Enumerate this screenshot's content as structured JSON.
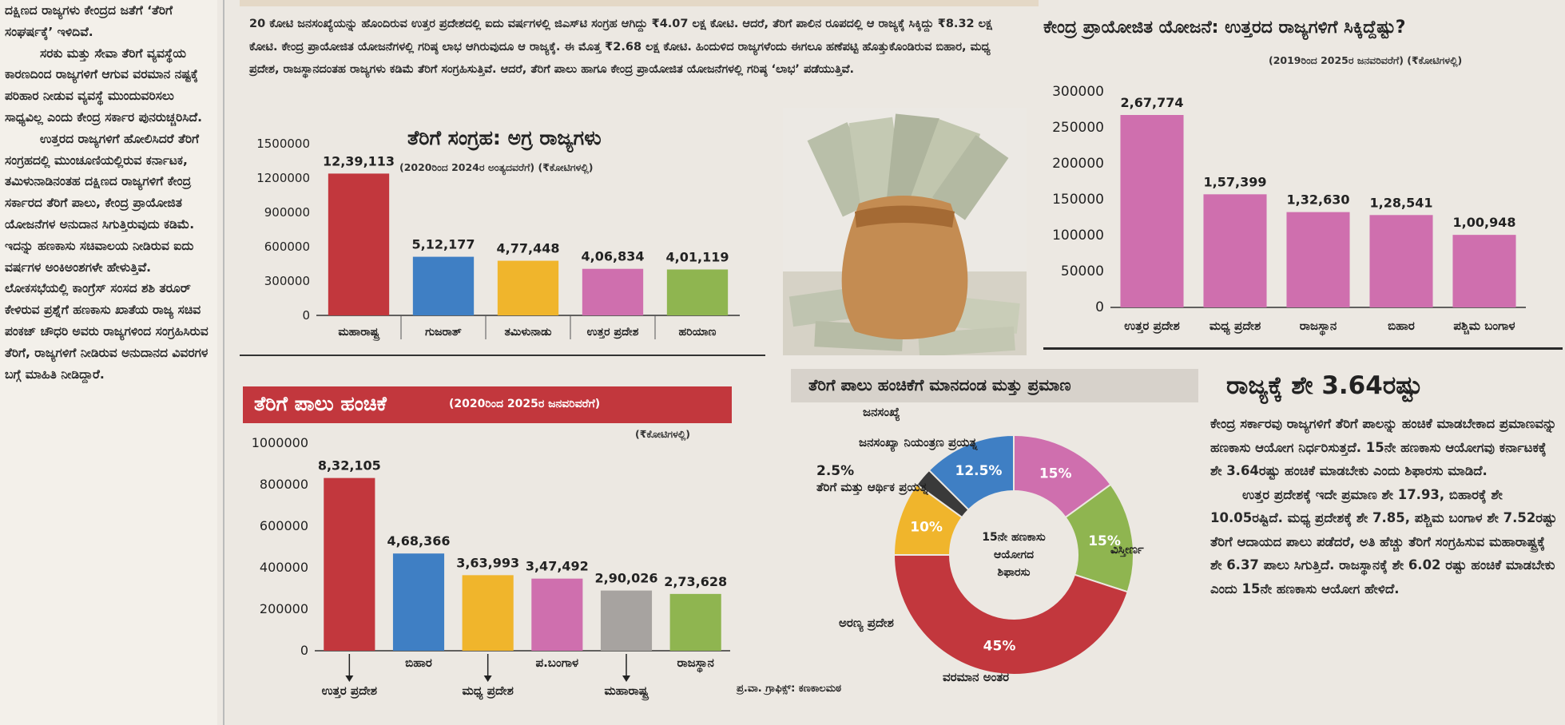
{
  "left_column": {
    "paragraphs": [
      "ದಕ್ಷಿಣದ ರಾಜ್ಯಗಳು ಕೇಂದ್ರದ ಜತೆಗೆ ‘ತೆರಿಗೆ ಸಂಘರ್ಷಕ್ಕೆ’ ಇಳಿದಿವೆ.",
      "ಸರಕು ಮತ್ತು ಸೇವಾ ತೆರಿಗೆ ವ್ಯವಸ್ಥೆಯ ಕಾರಣದಿಂದ ರಾಜ್ಯಗಳಿಗೆ ಆಗುವ ವರಮಾನ ನಷ್ಟಕ್ಕೆ ಪರಿಹಾರ ನೀಡುವ ವ್ಯವಸ್ಥೆ ಮುಂದುವರಿಸಲು ಸಾಧ್ಯವಿಲ್ಲ ಎಂದು ಕೇಂದ್ರ ಸರ್ಕಾರ ಪುನರುಚ್ಚರಿಸಿದೆ.",
      "ಉತ್ತರದ ರಾಜ್ಯಗಳಿಗೆ ಹೋಲಿಸಿದರೆ ತೆರಿಗೆ ಸಂಗ್ರಹದಲ್ಲಿ ಮುಂಚೂಣಿಯಲ್ಲಿರುವ ಕರ್ನಾಟಕ, ತಮಿಳುನಾಡಿನಂತಹ ದಕ್ಷಿಣದ ರಾಜ್ಯಗಳಿಗೆ ಕೇಂದ್ರ ಸರ್ಕಾರದ ತೆರಿಗೆ ಪಾಲು, ಕೇಂದ್ರ ಪ್ರಾಯೋಜಿತ ಯೋಜನೆಗಳ ಅನುದಾನ ಸಿಗುತ್ತಿರುವುದು ಕಡಿಮೆ. ಇದನ್ನು ಹಣಕಾಸು ಸಚಿವಾಲಯ ನೀಡಿರುವ ಐದು ವರ್ಷಗಳ ಅಂಕಿಅಂಶಗಳೇ ಹೇಳುತ್ತಿವೆ. ಲೋಕಸಭೆಯಲ್ಲಿ ಕಾಂಗ್ರೆಸ್ ಸಂಸದ ಶಶಿ ತರೂರ್ ಕೇಳಿರುವ ಪ್ರಶ್ನೆಗೆ ಹಣಕಾಸು ಖಾತೆಯ ರಾಜ್ಯ ಸಚಿವ ಪಂಕಜ್ ಚೌಧರಿ ಅವರು ರಾಜ್ಯಗಳಿಂದ ಸಂಗ್ರಹಿಸಿರುವ ತೆರಿಗೆ, ರಾಜ್ಯಗಳಿಗೆ ನೀಡಿರುವ ಅನುದಾನದ ವಿವರಗಳ ಬಗ್ಗೆ ಮಾಹಿತಿ ನೀಡಿದ್ದಾರೆ."
    ]
  },
  "intro": "20 ಕೋಟಿ ಜನಸಂಖ್ಯೆಯನ್ನು ಹೊಂದಿರುವ ಉತ್ತರ ಪ್ರದೇಶದಲ್ಲಿ ಐದು ವರ್ಷಗಳಲ್ಲಿ ಜಿಎಸ್‌ಟಿ ಸಂಗ್ರಹ ಆಗಿದ್ದು ₹4.07 ಲಕ್ಷ ಕೋಟಿ. ಆದರೆ, ತೆರಿಗೆ ಪಾಲಿನ ರೂಪದಲ್ಲಿ ಆ ರಾಜ್ಯಕ್ಕೆ ಸಿಕ್ಕಿದ್ದು ₹8.32 ಲಕ್ಷ ಕೋಟಿ. ಕೇಂದ್ರ ಪ್ರಾಯೋಜಿತ ಯೋಜನೆಗಳಲ್ಲಿ ಗರಿಷ್ಠ ಲಾಭ ಆಗಿರುವುದೂ ಆ ರಾಜ್ಯಕ್ಕೆ. ಈ ಮೊತ್ತ ₹2.68 ಲಕ್ಷ ಕೋಟಿ. ಹಿಂದುಳಿದ ರಾಜ್ಯಗಳೆಂದು ಈಗಲೂ ಹಣೆಪಟ್ಟಿ ಹೊತ್ತುಕೊಂಡಿರುವ ಬಿಹಾರ, ಮಧ್ಯ ಪ್ರದೇಶ, ರಾಜಸ್ಥಾನದಂತಹ ರಾಜ್ಯಗಳು ಕಡಿಮೆ ತೆರಿಗೆ ಸಂಗ್ರಹಿಸುತ್ತಿವೆ. ಆದರೆ, ತೆರಿಗೆ ಪಾಲು ಹಾಗೂ ಕೇಂದ್ರ ಪ್ರಾಯೋಜಿತ ಯೋಜನೆಗಳಲ್ಲಿ ಗರಿಷ್ಠ ‘ಲಾಭ’ ಪಡೆಯುತ್ತಿವೆ.",
  "chart_data": [
    {
      "id": "tax_collection",
      "type": "bar",
      "title": "ತೆರಿಗೆ ಸಂಗ್ರಹ: ಅಗ್ರ ರಾಜ್ಯಗಳು",
      "subtitle": "(2020ರಿಂದ 2024ರ ಅಂತ್ಯದವರೆಗೆ) (₹ಕೋಟಿಗಳಲ್ಲಿ)",
      "categories": [
        "ಮಹಾರಾಷ್ಟ್ರ",
        "ಗುಜರಾತ್",
        "ತಮಿಳುನಾಡು",
        "ಉತ್ತರ ಪ್ರದೇಶ",
        "ಹರಿಯಾಣ"
      ],
      "values": [
        1239113,
        512177,
        477448,
        406834,
        401119
      ],
      "value_labels": [
        "12,39,113",
        "5,12,177",
        "4,77,448",
        "4,06,834",
        "4,01,119"
      ],
      "colors": [
        "#c2373d",
        "#3f7fc4",
        "#f0b52c",
        "#cf6fae",
        "#8fb550"
      ],
      "yticks": [
        0,
        300000,
        600000,
        900000,
        1200000,
        1500000
      ],
      "ylim": [
        0,
        1500000
      ]
    },
    {
      "id": "tax_share",
      "type": "bar",
      "title": "ತೆರಿಗೆ ಪಾಲು ಹಂಚಿಕೆ",
      "subtitle": "(2020ರಿಂದ 2025ರ ಜನವರಿವರೆಗೆ)",
      "unit": "(₹ಕೋಟಿಗಳಲ್ಲಿ)",
      "categories": [
        "ಉತ್ತರ ಪ್ರದೇಶ",
        "ಬಿಹಾರ",
        "ಮಧ್ಯ ಪ್ರದೇಶ",
        "ಪ.ಬಂಗಾಳ",
        "ಮಹಾರಾಷ್ಟ್ರ",
        "ರಾಜಸ್ಥಾನ"
      ],
      "values": [
        832105,
        468366,
        363993,
        347492,
        290026,
        273628
      ],
      "value_labels": [
        "8,32,105",
        "4,68,366",
        "3,63,993",
        "3,47,492",
        "2,90,026",
        "2,73,628"
      ],
      "colors": [
        "#c2373d",
        "#3f7fc4",
        "#f0b52c",
        "#cf6fae",
        "#a7a3a0",
        "#8fb550"
      ],
      "yticks": [
        0,
        200000,
        400000,
        600000,
        800000,
        1000000
      ],
      "ylim": [
        0,
        1000000
      ]
    },
    {
      "id": "central_schemes",
      "type": "bar",
      "title": "ಕೇಂದ್ರ ಪ್ರಾಯೋಜಿತ ಯೋಜನೆ: ಉತ್ತರದ ರಾಜ್ಯಗಳಿಗೆ ಸಿಕ್ಕಿದ್ದೆಷ್ಟು?",
      "subtitle": "(2019ರಿಂದ 2025ರ ಜನವರಿವರೆಗೆ) (₹ಕೋಟಿಗಳಲ್ಲಿ)",
      "categories": [
        "ಉತ್ತರ ಪ್ರದೇಶ",
        "ಮಧ್ಯ ಪ್ರದೇಶ",
        "ರಾಜಸ್ಥಾನ",
        "ಬಿಹಾರ",
        "ಪಶ್ಚಿಮ ಬಂಗಾಳ"
      ],
      "values": [
        267774,
        157399,
        132630,
        128541,
        100948
      ],
      "value_labels": [
        "2,67,774",
        "1,57,399",
        "1,32,630",
        "1,28,541",
        "1,00,948"
      ],
      "colors": [
        "#cf6fae",
        "#cf6fae",
        "#cf6fae",
        "#cf6fae",
        "#cf6fae"
      ],
      "yticks": [
        0,
        50000,
        100000,
        150000,
        200000,
        250000,
        300000
      ],
      "ylim": [
        0,
        300000
      ]
    },
    {
      "id": "devolution_criteria",
      "type": "pie",
      "title": "ತೆರಿಗೆ ಪಾಲು ಹಂಚಿಕೆಗೆ ಮಾನದಂಡ ಮತ್ತು ಪ್ರಮಾಣ",
      "center_label": [
        "15ನೇ ಹಣಕಾಸು",
        "ಆಯೋಗದ",
        "ಶಿಫಾರಸು"
      ],
      "slices": [
        {
          "label": "ಜನಸಂಖ್ಯೆ",
          "value": 15,
          "pct": "15%",
          "color": "#cf6fae"
        },
        {
          "label": "ವಿಸ್ತೀರ್ಣ",
          "value": 15,
          "pct": "15%",
          "color": "#8fb550"
        },
        {
          "label": "ವರಮಾನ ಅಂತರ",
          "value": 45,
          "pct": "45%",
          "color": "#c2373d"
        },
        {
          "label": "ಅರಣ್ಯ ಪ್ರದೇಶ",
          "value": 10,
          "pct": "10%",
          "color": "#f0b52c"
        },
        {
          "label": "ತೆರಿಗೆ ಮತ್ತು ಆರ್ಥಿಕ ಪ್ರಯತ್ನ",
          "value": 2.5,
          "pct": "2.5%",
          "color": "#3a3a3a"
        },
        {
          "label": "ಜನಸಂಖ್ಯಾ ನಿಯಂತ್ರಣ ಪ್ರಯತ್ನ",
          "value": 12.5,
          "pct": "12.5%",
          "color": "#3f7fc4"
        }
      ]
    }
  ],
  "credit": "ಪ್ರ.ವಾ. ಗ್ರಾಫಿಕ್ಸ್: ಕಣಕಾಲಮಠ",
  "right_story": {
    "title": "ರಾಜ್ಯಕ್ಕೆ ಶೇ 3.64ರಷ್ಟು",
    "p1": "ಕೇಂದ್ರ ಸರ್ಕಾರವು ರಾಜ್ಯಗಳಿಗೆ ತೆರಿಗೆ ಪಾಲನ್ನು ಹಂಚಿಕೆ ಮಾಡಬೇಕಾದ ಪ್ರಮಾಣವನ್ನು ಹಣಕಾಸು ಆಯೋಗ ನಿರ್ಧರಿಸುತ್ತದೆ. 15ನೇ ಹಣಕಾಸು ಆಯೋಗವು ಕರ್ನಾಟಕಕ್ಕೆ ಶೇ 3.64ರಷ್ಟು ಹಂಚಿಕೆ ಮಾಡಬೇಕು ಎಂದು ಶಿಫಾರಸು ಮಾಡಿದೆ.",
    "p2": "ಉತ್ತರ ಪ್ರದೇಶಕ್ಕೆ ಇದೇ ಪ್ರಮಾಣ ಶೇ 17.93, ಬಿಹಾರಕ್ಕೆ ಶೇ 10.05ರಷ್ಟಿದೆ. ಮಧ್ಯ ಪ್ರದೇಶಕ್ಕೆ ಶೇ 7.85, ಪಶ್ಚಿಮ ಬಂಗಾಳ ಶೇ 7.52ರಷ್ಟು ತೆರಿಗೆ ಆದಾಯದ ಪಾಲು ಪಡೆದರೆ, ಅತಿ ಹೆಚ್ಚು ತೆರಿಗೆ ಸಂಗ್ರಹಿಸುವ ಮಹಾರಾಷ್ಟ್ರಕ್ಕೆ ಶೇ 6.37 ಪಾಲು ಸಿಗುತ್ತಿದೆ. ರಾಜಸ್ಥಾನಕ್ಕೆ ಶೇ 6.02 ರಷ್ಟು ಹಂಚಿಕೆ ಮಾಡಬೇಕು ಎಂದು 15ನೇ ಹಣಕಾಸು ಆಯೋಗ ಹೇಳಿದೆ."
  }
}
